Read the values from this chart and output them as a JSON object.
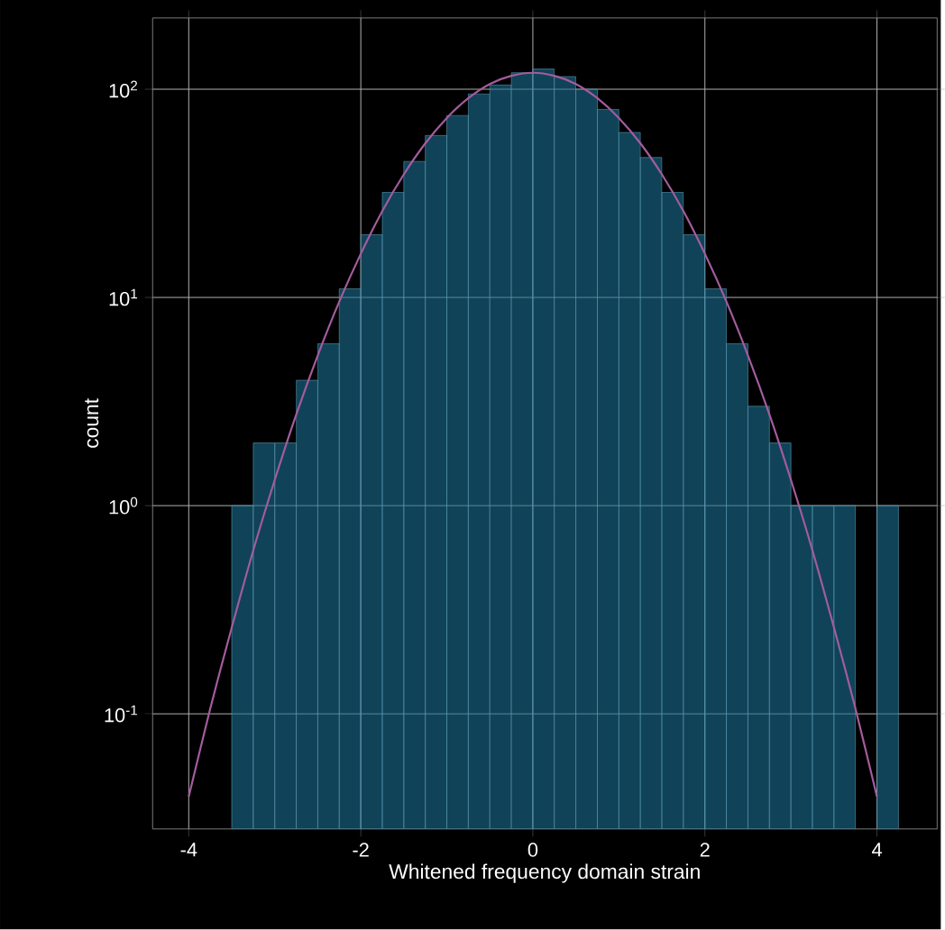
{
  "chart_data": {
    "type": "histogram",
    "xlabel": "Whitened frequency domain strain",
    "ylabel": "count",
    "log": "y",
    "grid": true,
    "xlim": [
      -4.42,
      4.7
    ],
    "ylim": [
      0.028,
      220
    ],
    "xticks": [
      -4,
      -2,
      0,
      2,
      4
    ],
    "yticks": [
      {
        "value": 0.1,
        "label": "10$^{-1}$"
      },
      {
        "value": 1,
        "label": "10$^{0}$"
      },
      {
        "value": 10,
        "label": "10$^{1}$"
      },
      {
        "value": 100,
        "label": "10$^{2}$"
      }
    ],
    "series": [
      {
        "color": "#1b6f93",
        "bins": [
          -3.5,
          -3.25,
          -3.0,
          -2.75,
          -2.5,
          -2.25,
          -2.0,
          -1.75,
          -1.5,
          -1.25,
          -1.0,
          -0.75,
          -0.5,
          -0.25,
          0.0,
          0.25,
          0.5,
          0.75,
          1.0,
          1.25,
          1.5,
          1.75,
          2.0,
          2.25,
          2.5,
          2.75,
          3.0,
          3.25,
          3.5,
          3.75,
          4.0,
          4.25
        ],
        "values": [
          1,
          2,
          2,
          4,
          6,
          11,
          20,
          32,
          45,
          60,
          75,
          95,
          105,
          120,
          125,
          115,
          100,
          80,
          62,
          47,
          32,
          20,
          11,
          6,
          3,
          2,
          1,
          1,
          1,
          null,
          1
        ]
      },
      {
        "type": "line",
        "color": "#a45c9e",
        "x": [
          -4,
          -3.75,
          -3.5,
          -3.25,
          -3,
          -2.75,
          -2.5,
          -2.25,
          -2,
          -1.75,
          -1.5,
          -1.25,
          -1,
          -0.75,
          -0.5,
          -0.25,
          0,
          0.25,
          0.5,
          0.75,
          1,
          1.25,
          1.5,
          1.75,
          2,
          2.25,
          2.5,
          2.75,
          3,
          3.25,
          3.5,
          3.75,
          4
        ],
        "values": [
          0.04,
          0.106,
          0.26,
          0.61,
          1.33,
          2.74,
          5.27,
          9.55,
          16.2,
          26,
          39,
          55,
          72.8,
          90.6,
          106,
          116,
          120,
          116,
          106,
          90.6,
          72.8,
          55,
          39,
          26,
          16.2,
          9.55,
          5.27,
          2.74,
          1.33,
          0.61,
          0.26,
          0.106,
          0.04
        ]
      }
    ]
  }
}
